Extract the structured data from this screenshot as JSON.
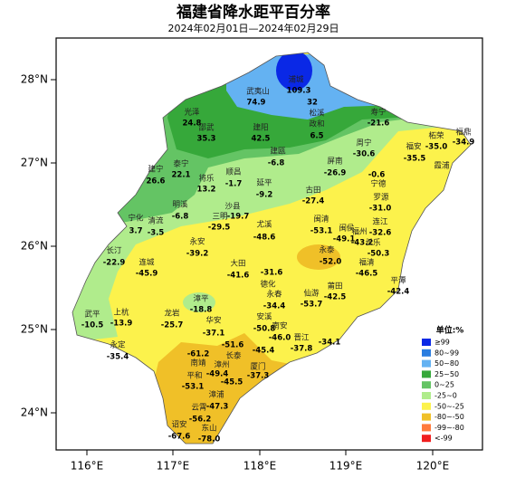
{
  "title": "福建省降水距平百分率",
  "subtitle": "2024年02月01日—2024年02月29日",
  "lat_labels": [
    "28°N",
    "27°N",
    "26°N",
    "25°N",
    "24°N"
  ],
  "lon_labels": [
    "116°E",
    "117°E",
    "118°E",
    "119°E",
    "120°E"
  ],
  "legend": {
    "title": "单位:%",
    "items": [
      {
        "label": "≥99",
        "color": "#0a28e6"
      },
      {
        "label": "80~99",
        "color": "#2a7de0"
      },
      {
        "label": "50~80",
        "color": "#64b2f2"
      },
      {
        "label": "25~50",
        "color": "#36a83a"
      },
      {
        "label": "0~25",
        "color": "#64c464"
      },
      {
        "label": "-25~0",
        "color": "#b0ec8c"
      },
      {
        "label": "-50~-25",
        "color": "#fcf24c"
      },
      {
        "label": "-80~-50",
        "color": "#f0c028"
      },
      {
        "label": "-99~-80",
        "color": "#ff7a3c"
      },
      {
        "label": "<-99",
        "color": "#f01e1e"
      }
    ]
  },
  "stations": [
    {
      "name": "浦城",
      "value": "109.3"
    },
    {
      "name": "武夷山",
      "value": "74.9"
    },
    {
      "name": "光泽",
      "value": "24.8"
    },
    {
      "name": "邵武",
      "value": "35.3"
    },
    {
      "name": "建阳",
      "value": "42.5"
    },
    {
      "name": "松溪",
      "value": "32"
    },
    {
      "name": "政和",
      "value": "6.5"
    },
    {
      "name": "寿宁",
      "value": "-21.6"
    },
    {
      "name": "周宁",
      "value": "-30.6"
    },
    {
      "name": "福安",
      "value": "-35.5"
    },
    {
      "name": "柘荣",
      "value": "-35.0"
    },
    {
      "name": "福鼎",
      "value": "-34.9"
    },
    {
      "name": "霞浦"
    },
    {
      "name": "建瓯",
      "value": "-6.8"
    },
    {
      "name": "建宁",
      "value": "26.6"
    },
    {
      "name": "泰宁",
      "value": "22.1"
    },
    {
      "name": "将乐",
      "value": "13.2"
    },
    {
      "name": "顺昌",
      "value": "-1.7"
    },
    {
      "name": "屏南",
      "value": "-26.9"
    },
    {
      "name": "延平",
      "value": "-9.2"
    },
    {
      "name": "古田",
      "value": "-27.4"
    },
    {
      "name": "宁德",
      "value": "-0.6"
    },
    {
      "name": "罗源",
      "value": "-31.0"
    },
    {
      "name": "明溪",
      "value": "-6.8"
    },
    {
      "name": "沙县"
    },
    {
      "name": "三明",
      "value": "-19.7"
    },
    {
      "name": "宁化",
      "value": "3.7"
    },
    {
      "name": "清流",
      "value": "-3.5"
    },
    {
      "name": "尤溪",
      "value": "-48.6"
    },
    {
      "value": "-29.5"
    },
    {
      "name": "闽清",
      "value": "-53.1"
    },
    {
      "name": "闽侯",
      "value": "-49.1"
    },
    {
      "name": "福州",
      "value": "-43.2"
    },
    {
      "name": "连江",
      "value": "-32.6"
    },
    {
      "name": "长乐",
      "value": "-50.3"
    },
    {
      "name": "永泰",
      "value": "-52.0"
    },
    {
      "name": "永安",
      "value": "-39.2"
    },
    {
      "name": "长汀",
      "value": "-22.9"
    },
    {
      "name": "连城",
      "value": "-45.9"
    },
    {
      "name": "大田",
      "value": "-41.6"
    },
    {
      "name": "德化",
      "value": "-31.6"
    },
    {
      "name": "福清",
      "value": "-46.5"
    },
    {
      "name": "平潭",
      "value": "-42.4"
    },
    {
      "name": "莆田",
      "value": "-42.5"
    },
    {
      "name": "永春",
      "value": "-34.4"
    },
    {
      "name": "仙游",
      "value": "-53.7"
    },
    {
      "name": "漳平",
      "value": "-18.8"
    },
    {
      "name": "武平",
      "value": "-10.5"
    },
    {
      "name": "上杭",
      "value": "-13.9"
    },
    {
      "name": "龙岩",
      "value": "-25.7"
    },
    {
      "name": "安溪",
      "value": "-50.8"
    },
    {
      "name": "华安",
      "value": "-37.1"
    },
    {
      "name": "南安",
      "value": "-46.0"
    },
    {
      "name": "晋江",
      "value": "-37.8"
    },
    {
      "value": "-34.1"
    },
    {
      "name": "永定",
      "value": "-35.4"
    },
    {
      "value": "-51.6"
    },
    {
      "name": "长泰",
      "value": "-45.4"
    },
    {
      "name": "南靖",
      "value": "-61.2"
    },
    {
      "name": "漳州",
      "value": "-49.4"
    },
    {
      "name": "平和",
      "value": "-53.1"
    },
    {
      "value": "-45.5"
    },
    {
      "name": "厦门",
      "value": "-37.3"
    },
    {
      "name": "漳浦",
      "value": "-47.3"
    },
    {
      "name": "云霄",
      "value": "-56.2"
    },
    {
      "name": "诏安",
      "value": "-67.6"
    },
    {
      "name": "东山",
      "value": "-78.0"
    }
  ]
}
